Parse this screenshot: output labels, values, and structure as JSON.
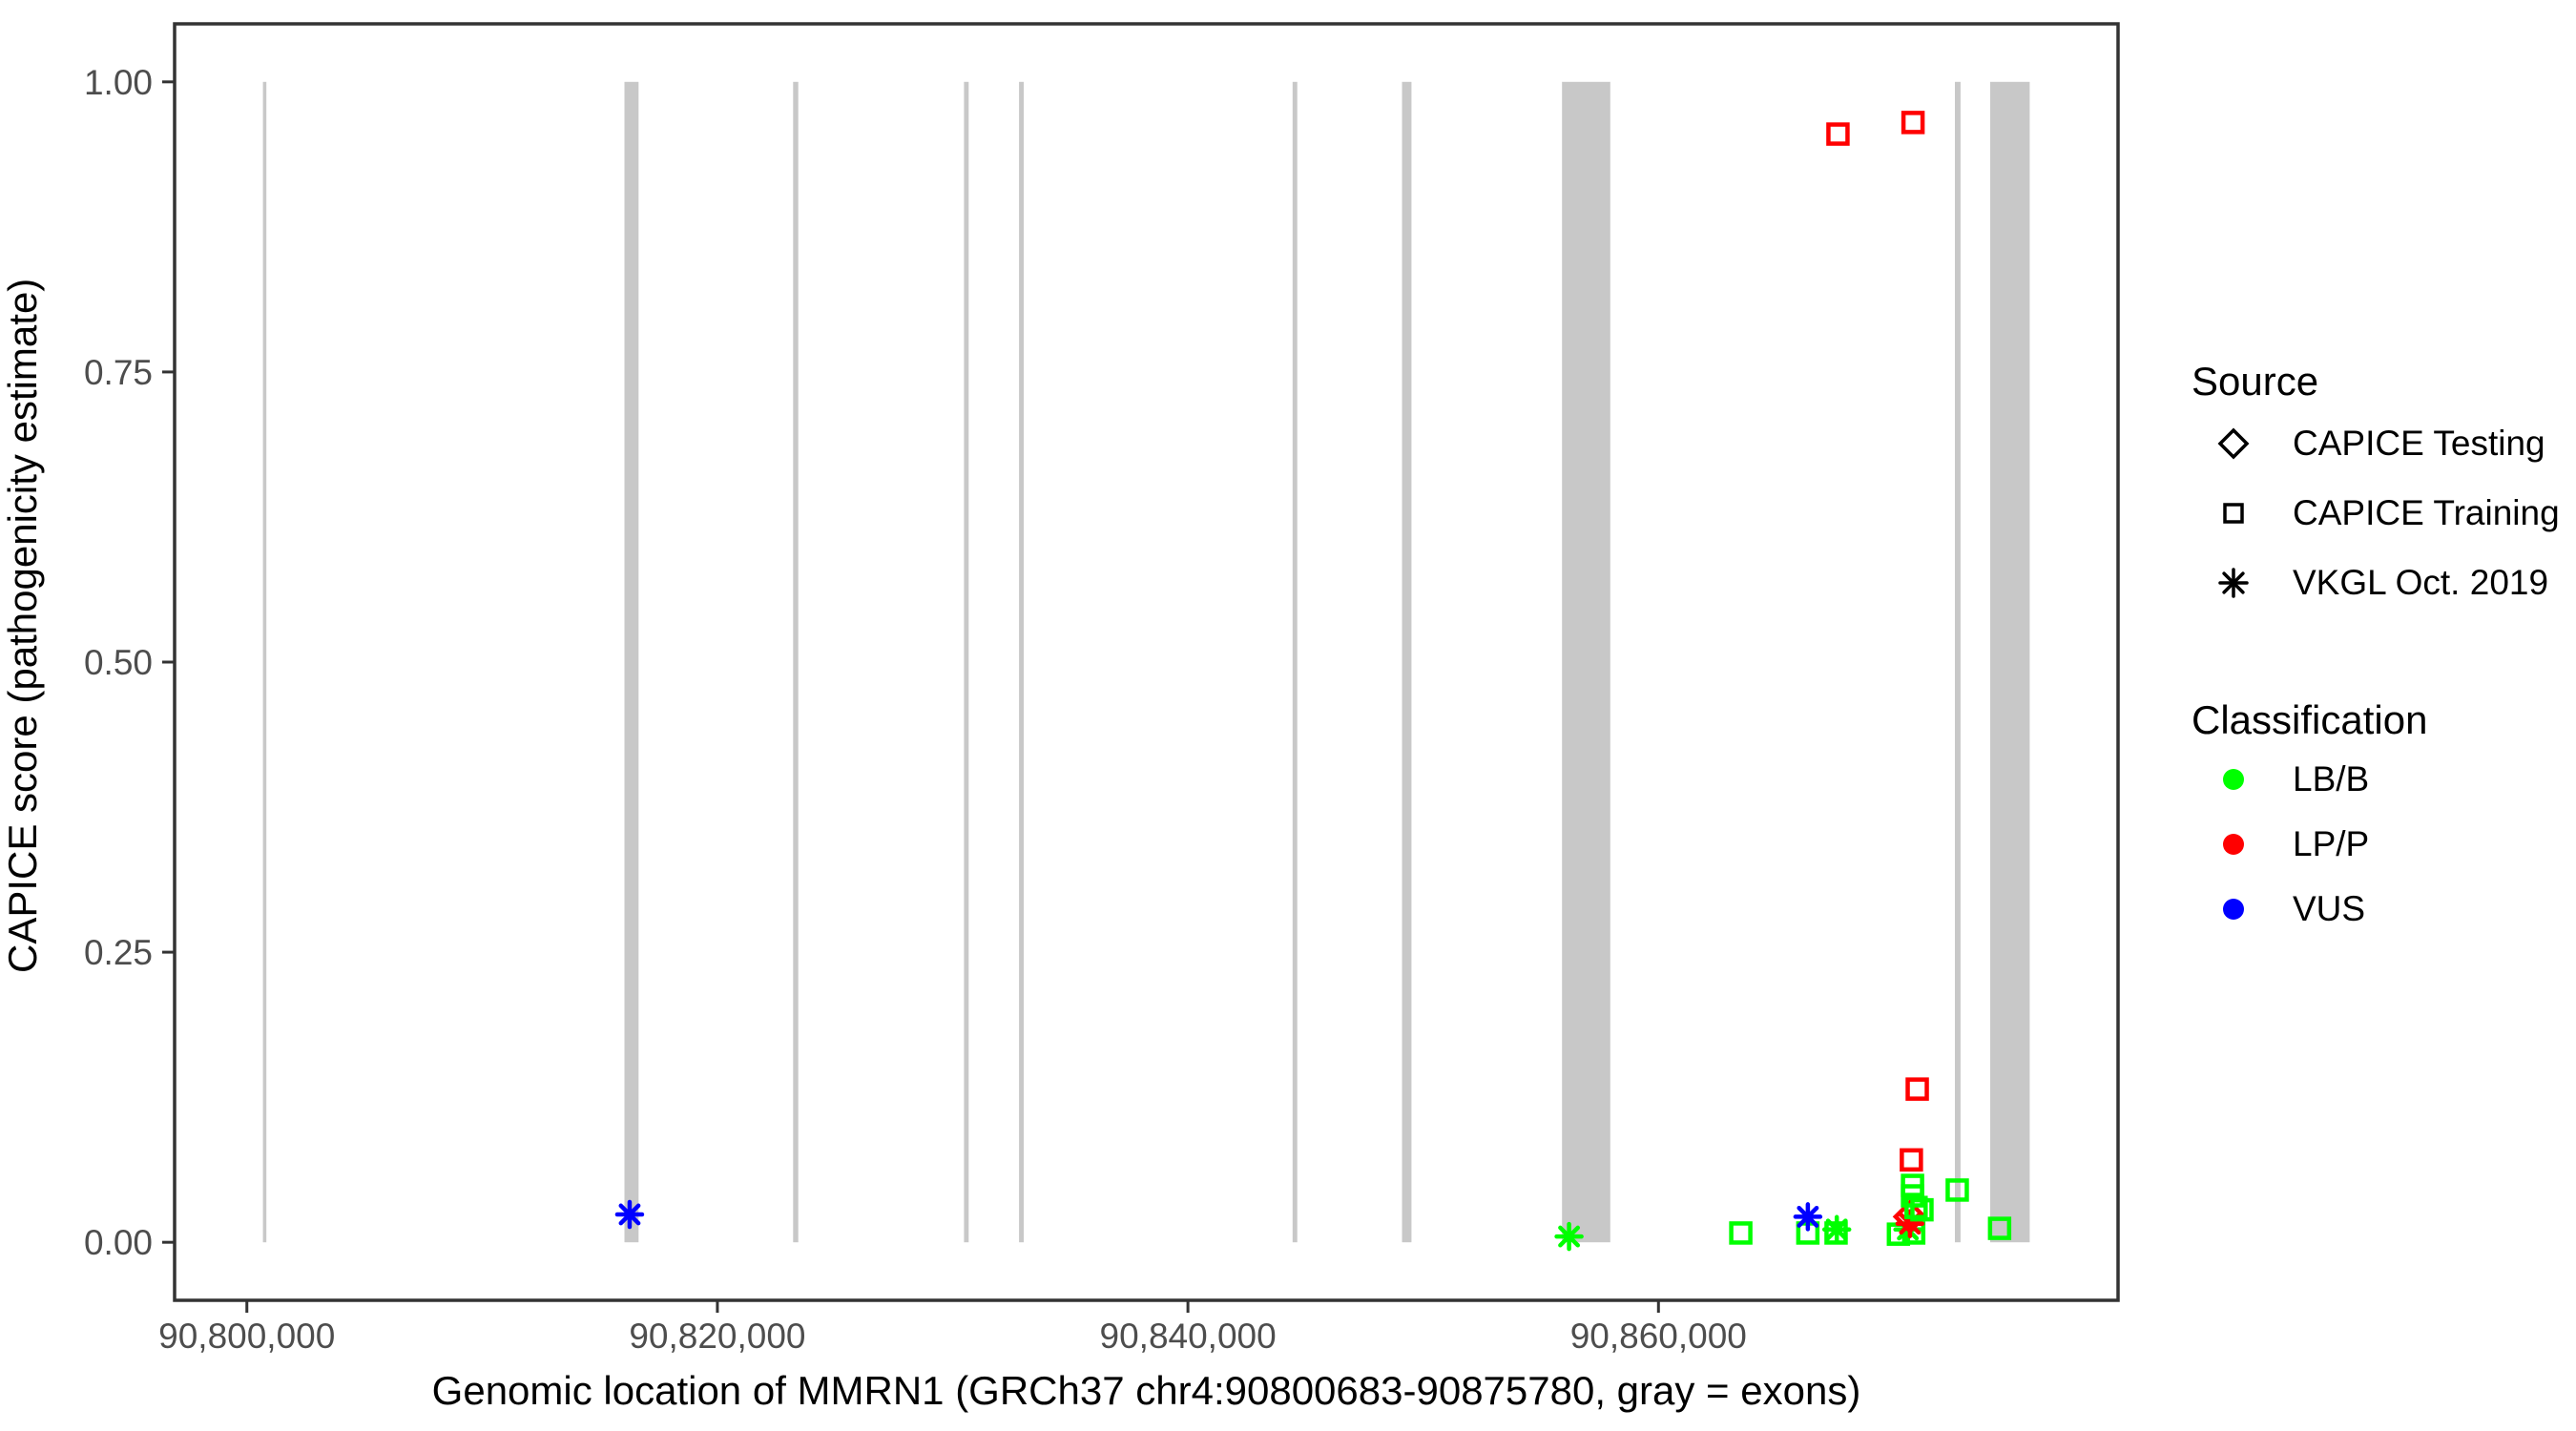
{
  "chart_data": {
    "type": "scatter",
    "title": "",
    "xlabel": "Genomic location of MMRN1 (GRCh37 chr4:90800683-90875780, gray = exons)",
    "ylabel": "CAPICE score (pathogenicity estimate)",
    "gene": {
      "name": "MMRN1",
      "assembly": "GRCh37",
      "chromosome": "chr4",
      "start": 90800683,
      "end": 90875780
    },
    "ylim": [
      0,
      1
    ],
    "axis_expansion": 0.05,
    "x_ticks": [
      {
        "value": 90800000,
        "label": "90,800,000"
      },
      {
        "value": 90820000,
        "label": "90,820,000"
      },
      {
        "value": 90840000,
        "label": "90,840,000"
      },
      {
        "value": 90860000,
        "label": "90,860,000"
      }
    ],
    "y_ticks": [
      {
        "value": 0.0,
        "label": "0.00"
      },
      {
        "value": 0.25,
        "label": "0.25"
      },
      {
        "value": 0.5,
        "label": "0.50"
      },
      {
        "value": 0.75,
        "label": "0.75"
      },
      {
        "value": 1.0,
        "label": "1.00"
      }
    ],
    "exons": [
      {
        "start": 90800683,
        "end": 90800830
      },
      {
        "start": 90816050,
        "end": 90816650
      },
      {
        "start": 90823220,
        "end": 90823440
      },
      {
        "start": 90830480,
        "end": 90830680
      },
      {
        "start": 90832820,
        "end": 90833020
      },
      {
        "start": 90844450,
        "end": 90844650
      },
      {
        "start": 90849100,
        "end": 90849500
      },
      {
        "start": 90855900,
        "end": 90857950
      },
      {
        "start": 90872600,
        "end": 90872840
      },
      {
        "start": 90874100,
        "end": 90875780
      }
    ],
    "points": [
      {
        "pos": 90816270,
        "score": 0.024,
        "source": "VKGL Oct. 2019",
        "classification": "VUS"
      },
      {
        "pos": 90856200,
        "score": 0.005,
        "source": "VKGL Oct. 2019",
        "classification": "LB/B"
      },
      {
        "pos": 90863500,
        "score": 0.008,
        "source": "CAPICE Training",
        "classification": "LB/B"
      },
      {
        "pos": 90866350,
        "score": 0.008,
        "source": "CAPICE Training",
        "classification": "LB/B"
      },
      {
        "pos": 90866350,
        "score": 0.022,
        "source": "VKGL Oct. 2019",
        "classification": "VUS"
      },
      {
        "pos": 90867550,
        "score": 0.008,
        "source": "CAPICE Training",
        "classification": "LB/B"
      },
      {
        "pos": 90867580,
        "score": 0.011,
        "source": "VKGL Oct. 2019",
        "classification": "LB/B"
      },
      {
        "pos": 90870200,
        "score": 0.007,
        "source": "CAPICE Training",
        "classification": "LB/B"
      },
      {
        "pos": 90870850,
        "score": 0.008,
        "source": "CAPICE Training",
        "classification": "LB/B"
      },
      {
        "pos": 90870600,
        "score": 0.011,
        "source": "VKGL Oct. 2019",
        "classification": "LB/B"
      },
      {
        "pos": 90870690,
        "score": 0.016,
        "source": "VKGL Oct. 2019",
        "classification": "LP/P"
      },
      {
        "pos": 90870690,
        "score": 0.022,
        "source": "CAPICE Testing",
        "classification": "LP/P"
      },
      {
        "pos": 90870950,
        "score": 0.03,
        "source": "CAPICE Training",
        "classification": "LB/B"
      },
      {
        "pos": 90871200,
        "score": 0.028,
        "source": "CAPICE Training",
        "classification": "LB/B"
      },
      {
        "pos": 90870800,
        "score": 0.04,
        "source": "CAPICE Training",
        "classification": "LB/B"
      },
      {
        "pos": 90870800,
        "score": 0.049,
        "source": "CAPICE Training",
        "classification": "LB/B"
      },
      {
        "pos": 90870750,
        "score": 0.071,
        "source": "CAPICE Training",
        "classification": "LP/P"
      },
      {
        "pos": 90871000,
        "score": 0.132,
        "source": "CAPICE Training",
        "classification": "LP/P"
      },
      {
        "pos": 90872700,
        "score": 0.045,
        "source": "CAPICE Training",
        "classification": "LB/B"
      },
      {
        "pos": 90874500,
        "score": 0.012,
        "source": "CAPICE Training",
        "classification": "LB/B"
      },
      {
        "pos": 90867630,
        "score": 0.955,
        "source": "CAPICE Training",
        "classification": "LP/P"
      },
      {
        "pos": 90870820,
        "score": 0.965,
        "source": "CAPICE Training",
        "classification": "LP/P"
      }
    ],
    "colors": {
      "LB/B": "#00ff00",
      "LP/P": "#ff0000",
      "VUS": "#0000ff",
      "exon": "#c8c8c8",
      "panel_border": "#333333",
      "tick": "#333333",
      "tick_label": "#4d4d4d"
    },
    "legend": {
      "source_title": "Source",
      "source_items": [
        {
          "label": "CAPICE Testing",
          "glyph": "diamond-icon"
        },
        {
          "label": "CAPICE Training",
          "glyph": "square-icon"
        },
        {
          "label": "VKGL Oct. 2019",
          "glyph": "asterisk-icon"
        }
      ],
      "classification_title": "Classification",
      "classification_items": [
        {
          "label": "LB/B",
          "color": "#00ff00"
        },
        {
          "label": "LP/P",
          "color": "#ff0000"
        },
        {
          "label": "VUS",
          "color": "#0000ff"
        }
      ],
      "legend_position": "right"
    }
  }
}
